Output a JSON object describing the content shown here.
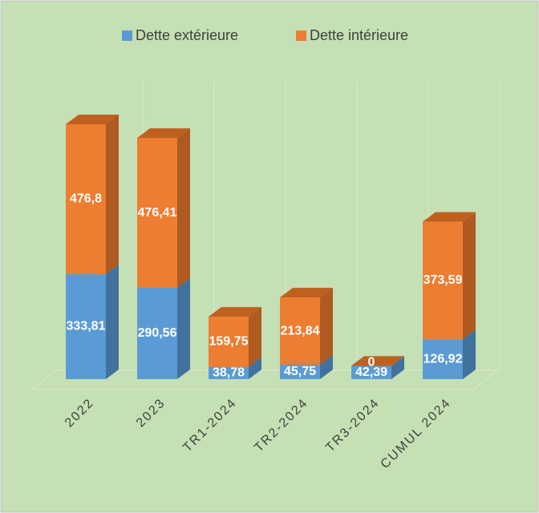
{
  "chart_data": {
    "type": "bar3d_stacked",
    "categories": [
      "2022",
      "2023",
      "TR1-2024",
      "TR2-2024",
      "TR3-2024",
      "CUMUL 2024"
    ],
    "series": [
      {
        "name": "Dette extérieure",
        "color": "#5b9bd5",
        "side_color": "#41719c",
        "top_color": "#7fb0de",
        "values": [
          333.81,
          290.56,
          38.78,
          45.75,
          42.39,
          126.92
        ],
        "value_labels": [
          "333,81",
          "290,56",
          "38,78",
          "45,75",
          "42,39",
          "126,92"
        ]
      },
      {
        "name": "Dette intérieure",
        "color": "#ed7d31",
        "side_color": "#ae5a21",
        "top_color": "#c0601f",
        "values": [
          476.8,
          476.41,
          159.75,
          213.84,
          0,
          373.59
        ],
        "value_labels": [
          "476,8",
          "476,41",
          "159,75",
          "213,84",
          "0",
          "373,59"
        ]
      }
    ]
  }
}
